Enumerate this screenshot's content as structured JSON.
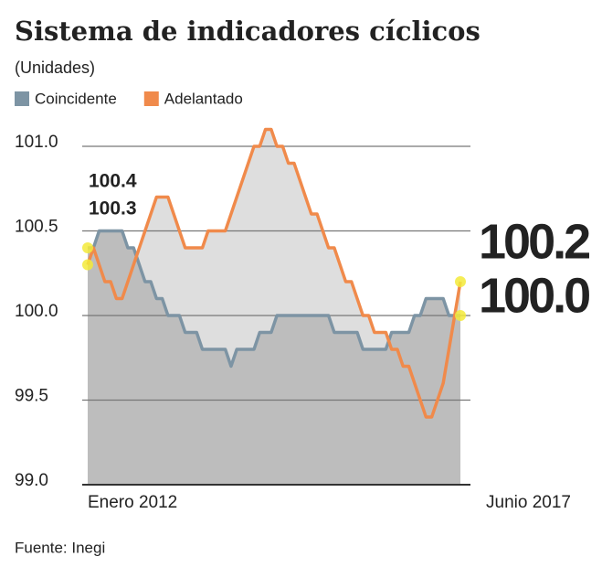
{
  "chart_data": {
    "type": "line",
    "title": "Sistema de indicadores cíclicos",
    "subtitle": "(Unidades)",
    "source": "Fuente: Inegi",
    "categories": [
      "Enero 2012",
      null,
      null,
      null,
      null,
      null,
      null,
      null,
      null,
      null,
      null,
      null,
      null,
      null,
      null,
      null,
      null,
      null,
      null,
      null,
      null,
      null,
      null,
      null,
      null,
      null,
      null,
      null,
      null,
      null,
      null,
      null,
      null,
      null,
      null,
      null,
      null,
      null,
      null,
      null,
      null,
      null,
      null,
      null,
      null,
      null,
      null,
      null,
      null,
      null,
      null,
      null,
      null,
      null,
      null,
      null,
      null,
      null,
      null,
      null,
      null,
      null,
      null,
      null,
      null,
      "Junio 2017"
    ],
    "series": [
      {
        "name": "Coincidente",
        "color": "#7d94a4",
        "fill": "#bdbdbd",
        "values": [
          100.4,
          100.4,
          100.5,
          100.5,
          100.5,
          100.5,
          100.5,
          100.4,
          100.4,
          100.3,
          100.2,
          100.2,
          100.1,
          100.1,
          100.0,
          100.0,
          100.0,
          99.9,
          99.9,
          99.9,
          99.8,
          99.8,
          99.8,
          99.8,
          99.8,
          99.7,
          99.8,
          99.8,
          99.8,
          99.8,
          99.9,
          99.9,
          99.9,
          100.0,
          100.0,
          100.0,
          100.0,
          100.0,
          100.0,
          100.0,
          100.0,
          100.0,
          100.0,
          99.9,
          99.9,
          99.9,
          99.9,
          99.9,
          99.8,
          99.8,
          99.8,
          99.8,
          99.8,
          99.9,
          99.9,
          99.9,
          99.9,
          100.0,
          100.0,
          100.1,
          100.1,
          100.1,
          100.1,
          100.0,
          100.0,
          100.0
        ],
        "value_labels": [
          "100.4",
          null,
          null,
          null,
          null,
          null,
          null,
          null,
          null,
          null,
          null,
          null,
          null,
          null,
          null,
          null,
          null,
          null,
          null,
          null,
          null,
          null,
          null,
          null,
          null,
          null,
          null,
          null,
          null,
          null,
          null,
          null,
          null,
          null,
          null,
          null,
          null,
          null,
          null,
          null,
          null,
          null,
          null,
          null,
          null,
          null,
          null,
          null,
          null,
          null,
          null,
          null,
          null,
          null,
          null,
          null,
          null,
          null,
          null,
          null,
          null,
          null,
          null,
          null,
          null,
          "100.0"
        ]
      },
      {
        "name": "Adelantado",
        "color": "#f08a4b",
        "fill": "#dedede",
        "values": [
          100.3,
          100.4,
          100.3,
          100.2,
          100.2,
          100.1,
          100.1,
          100.2,
          100.3,
          100.4,
          100.5,
          100.6,
          100.7,
          100.7,
          100.7,
          100.6,
          100.5,
          100.4,
          100.4,
          100.4,
          100.4,
          100.5,
          100.5,
          100.5,
          100.5,
          100.6,
          100.7,
          100.8,
          100.9,
          101.0,
          101.0,
          101.1,
          101.1,
          101.0,
          101.0,
          100.9,
          100.9,
          100.8,
          100.7,
          100.6,
          100.6,
          100.5,
          100.4,
          100.4,
          100.3,
          100.2,
          100.2,
          100.1,
          100.0,
          100.0,
          99.9,
          99.9,
          99.9,
          99.8,
          99.8,
          99.7,
          99.7,
          99.6,
          99.5,
          99.4,
          99.4,
          99.5,
          99.6,
          99.8,
          100.0,
          100.2
        ],
        "value_labels": [
          "100.3",
          null,
          null,
          null,
          null,
          null,
          null,
          null,
          null,
          null,
          null,
          null,
          null,
          null,
          null,
          null,
          null,
          null,
          null,
          null,
          null,
          null,
          null,
          null,
          null,
          null,
          null,
          null,
          null,
          null,
          null,
          null,
          null,
          null,
          null,
          null,
          null,
          null,
          null,
          null,
          null,
          null,
          null,
          null,
          null,
          null,
          null,
          null,
          null,
          null,
          null,
          null,
          null,
          null,
          null,
          null,
          null,
          null,
          null,
          null,
          null,
          null,
          null,
          null,
          null,
          "100.2"
        ]
      }
    ],
    "ylim": [
      99.0,
      101.2
    ],
    "yticks": [
      {
        "value": 99,
        "label": "99.0"
      },
      99.5,
      {
        "value": 100,
        "label": "100.0"
      },
      100.5,
      {
        "value": 101,
        "label": "101.0"
      }
    ],
    "grid": true,
    "legend": "top-left"
  }
}
